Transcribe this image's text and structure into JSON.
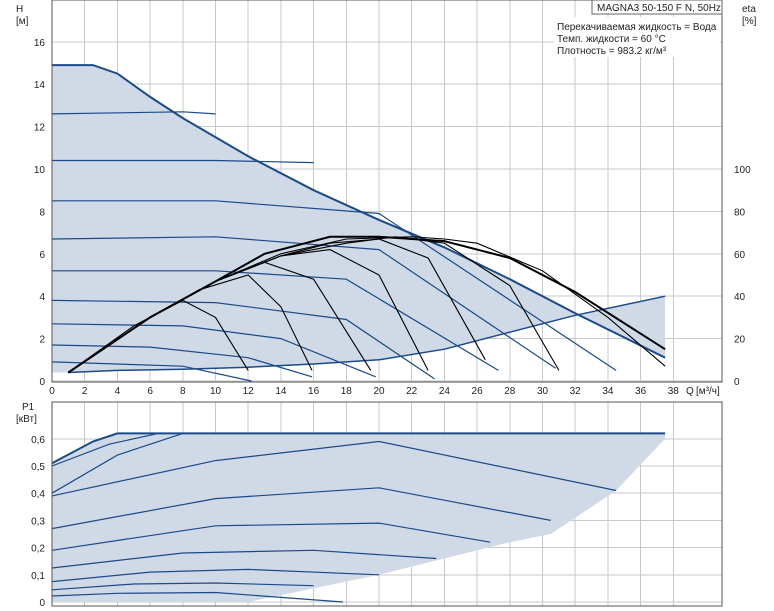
{
  "chart_data": [
    {
      "type": "line",
      "title": "MAGNA3 50-150 F N, 50Hz",
      "fluid_info": [
        "Перекачиваемая жидкость = Вода",
        "Темп. жидкости = 60 °C",
        "Плотность = 983.2 кг/м³"
      ],
      "ylabel": "H",
      "yunit": "[м]",
      "y2label": "eta",
      "y2unit": "[%]",
      "xlabel": "Q",
      "xunit": "[м³/ч]",
      "xlim": [
        0,
        40
      ],
      "ylim": [
        0,
        17
      ],
      "y2lim": [
        0,
        120
      ],
      "xticks": [
        0,
        2,
        4,
        6,
        8,
        10,
        12,
        14,
        16,
        18,
        20,
        22,
        24,
        26,
        28,
        30,
        32,
        34,
        36,
        38
      ],
      "yticks": [
        0,
        2,
        4,
        6,
        8,
        10,
        12,
        14,
        16
      ],
      "y2ticks": [
        0,
        20,
        40,
        60,
        80,
        100
      ],
      "grid": true,
      "colors": {
        "curve": "#1a4a8a",
        "area": "#d0dae6",
        "eta": "#000000"
      },
      "max_curve": {
        "x": [
          0,
          2.5,
          4,
          6,
          8,
          12,
          16,
          20,
          24,
          28,
          32,
          37.5
        ],
        "y": [
          14.9,
          14.9,
          14.5,
          13.4,
          12.4,
          10.6,
          9.0,
          7.6,
          6.3,
          4.8,
          3.2,
          1.1
        ]
      },
      "min_curve": {
        "x": [
          1,
          4,
          8,
          12,
          16,
          20,
          24,
          28,
          32,
          37.5
        ],
        "y": [
          0.4,
          0.5,
          0.55,
          0.65,
          0.8,
          1.0,
          1.5,
          2.3,
          3.1,
          4.0
        ]
      },
      "series": [
        {
          "values_x": [
            0,
            8,
            12.2
          ],
          "values_y": [
            0.9,
            0.7,
            0.0
          ]
        },
        {
          "values_x": [
            0,
            6,
            12,
            15.9
          ],
          "values_y": [
            1.7,
            1.6,
            1.1,
            0.2
          ]
        },
        {
          "values_x": [
            0,
            8,
            14,
            19.8
          ],
          "values_y": [
            2.7,
            2.6,
            2.0,
            0.2
          ]
        },
        {
          "values_x": [
            0,
            10,
            18,
            23.4
          ],
          "values_y": [
            3.8,
            3.7,
            2.9,
            0.1
          ]
        },
        {
          "values_x": [
            0,
            10,
            18,
            27.3
          ],
          "values_y": [
            5.2,
            5.2,
            4.8,
            0.5
          ]
        },
        {
          "values_x": [
            0,
            10,
            20,
            30.8
          ],
          "values_y": [
            6.7,
            6.8,
            6.2,
            0.6
          ]
        },
        {
          "values_x": [
            0,
            10,
            20,
            34.5
          ],
          "values_y": [
            8.5,
            8.5,
            7.9,
            0.5
          ]
        },
        {
          "values_x": [
            0,
            10,
            16
          ],
          "values_y": [
            10.4,
            10.4,
            10.3
          ]
        },
        {
          "values_x": [
            0,
            8,
            10
          ],
          "values_y": [
            12.6,
            12.7,
            12.6
          ]
        }
      ],
      "eta_curves": [
        {
          "x": [
            1,
            6,
            10,
            13,
            17,
            20,
            22,
            24,
            28,
            32,
            37.5
          ],
          "eta": [
            4,
            30,
            47,
            60,
            68,
            68,
            67,
            66,
            58,
            42,
            15
          ]
        },
        {
          "x": [
            1,
            6,
            10,
            14,
            18,
            22,
            24,
            26,
            30,
            34,
            37.5
          ],
          "eta": [
            4,
            30,
            47,
            60,
            67,
            68,
            67,
            65,
            52,
            30,
            7
          ]
        },
        {
          "x": [
            1,
            6,
            10,
            14,
            18,
            21,
            24,
            28,
            31
          ],
          "eta": [
            4,
            30,
            47,
            59,
            65,
            68,
            65,
            45,
            5
          ]
        },
        {
          "x": [
            1,
            6,
            10,
            14,
            17,
            20,
            23,
            26.5
          ],
          "eta": [
            4,
            30,
            47,
            59,
            65,
            67,
            58,
            10
          ]
        },
        {
          "x": [
            1,
            6,
            10,
            14,
            17,
            20,
            23
          ],
          "eta": [
            4,
            30,
            47,
            59,
            62,
            50,
            5
          ]
        },
        {
          "x": [
            1,
            6,
            10,
            13,
            16,
            19.5
          ],
          "eta": [
            4,
            30,
            47,
            56,
            48,
            5
          ]
        },
        {
          "x": [
            1,
            6,
            9,
            12,
            14,
            15.9
          ],
          "eta": [
            4,
            30,
            43,
            50,
            35,
            5
          ]
        },
        {
          "x": [
            1,
            5,
            8,
            10,
            12
          ],
          "eta": [
            4,
            26,
            38,
            30,
            5
          ]
        }
      ]
    },
    {
      "type": "line",
      "ylabel": "P1",
      "yunit": "[кВт]",
      "xlim": [
        0,
        40
      ],
      "ylim": [
        0,
        0.62
      ],
      "yticks": [
        "0",
        "0,1",
        "0,2",
        "0,3",
        "0,4",
        "0,5",
        "0,6"
      ],
      "yvals": [
        0,
        0.1,
        0.2,
        0.3,
        0.4,
        0.5,
        0.6
      ],
      "grid": true,
      "max_curve": {
        "x": [
          0,
          2.5,
          4,
          8,
          12,
          20,
          28,
          37.5
        ],
        "y": [
          0.51,
          0.59,
          0.62,
          0.62,
          0.62,
          0.62,
          0.62,
          0.62
        ]
      },
      "bottom_limit": {
        "x": [
          12,
          20,
          28,
          30.5,
          34.5,
          37.5
        ],
        "y": [
          0.0,
          0.1,
          0.22,
          0.25,
          0.41,
          0.6
        ]
      },
      "series": [
        {
          "x": [
            0,
            4,
            10,
            17.8
          ],
          "y": [
            0.022,
            0.032,
            0.035,
            0.0
          ]
        },
        {
          "x": [
            0,
            5,
            10,
            16
          ],
          "y": [
            0.045,
            0.066,
            0.07,
            0.06
          ]
        },
        {
          "x": [
            0,
            6,
            12,
            20
          ],
          "y": [
            0.075,
            0.11,
            0.12,
            0.1
          ]
        },
        {
          "x": [
            0,
            8,
            16,
            23.5
          ],
          "y": [
            0.125,
            0.18,
            0.19,
            0.16
          ]
        },
        {
          "x": [
            0,
            10,
            20,
            26.8
          ],
          "y": [
            0.19,
            0.28,
            0.29,
            0.22
          ]
        },
        {
          "x": [
            0,
            10,
            20,
            30.5
          ],
          "y": [
            0.27,
            0.38,
            0.42,
            0.3
          ]
        },
        {
          "x": [
            0,
            10,
            20,
            34.5
          ],
          "y": [
            0.39,
            0.52,
            0.59,
            0.41
          ]
        },
        {
          "x": [
            0,
            4,
            8
          ],
          "y": [
            0.4,
            0.54,
            0.62
          ]
        },
        {
          "x": [
            0,
            3.5,
            6.5
          ],
          "y": [
            0.5,
            0.58,
            0.62
          ]
        }
      ]
    }
  ]
}
